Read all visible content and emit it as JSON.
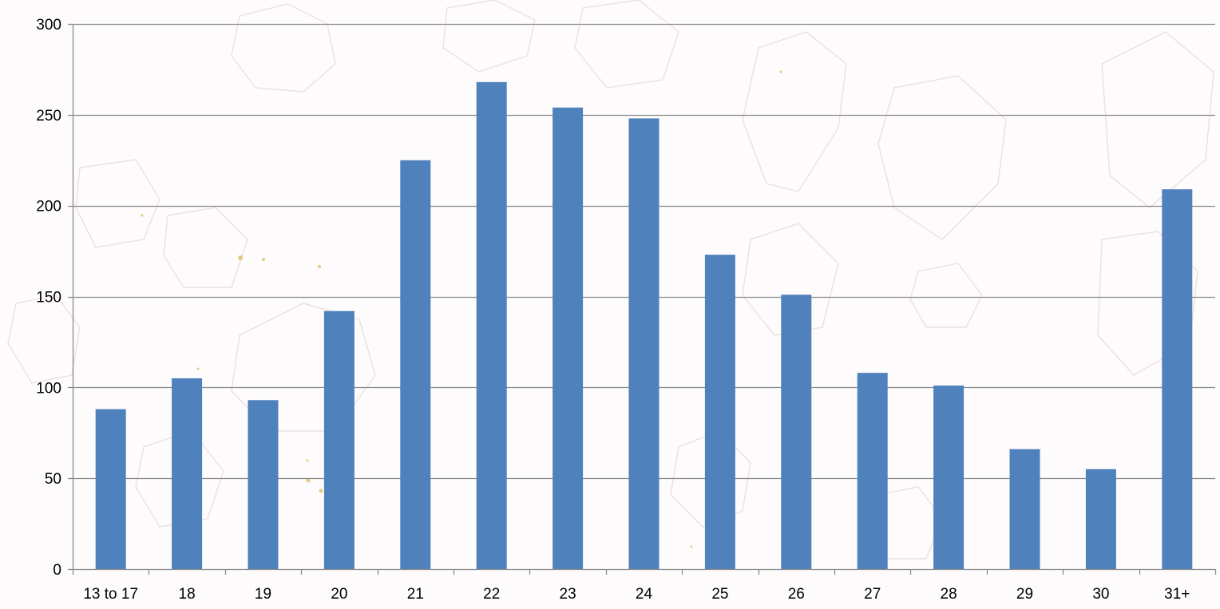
{
  "chart_data": {
    "type": "bar",
    "categories": [
      "13 to 17",
      "18",
      "19",
      "20",
      "21",
      "22",
      "23",
      "24",
      "25",
      "26",
      "27",
      "28",
      "29",
      "30",
      "31+"
    ],
    "values": [
      88,
      105,
      93,
      142,
      225,
      268,
      254,
      248,
      173,
      151,
      108,
      101,
      66,
      55,
      209
    ],
    "ylim": [
      0,
      300
    ],
    "yticks": [
      0,
      50,
      100,
      150,
      200,
      250,
      300
    ],
    "title": "",
    "xlabel": "",
    "ylabel": "",
    "grid": true,
    "legend": "none",
    "colors": {
      "bar": "#4f81bd",
      "gridline": "#8c8c8c",
      "axis": "#8c8c8c"
    }
  }
}
